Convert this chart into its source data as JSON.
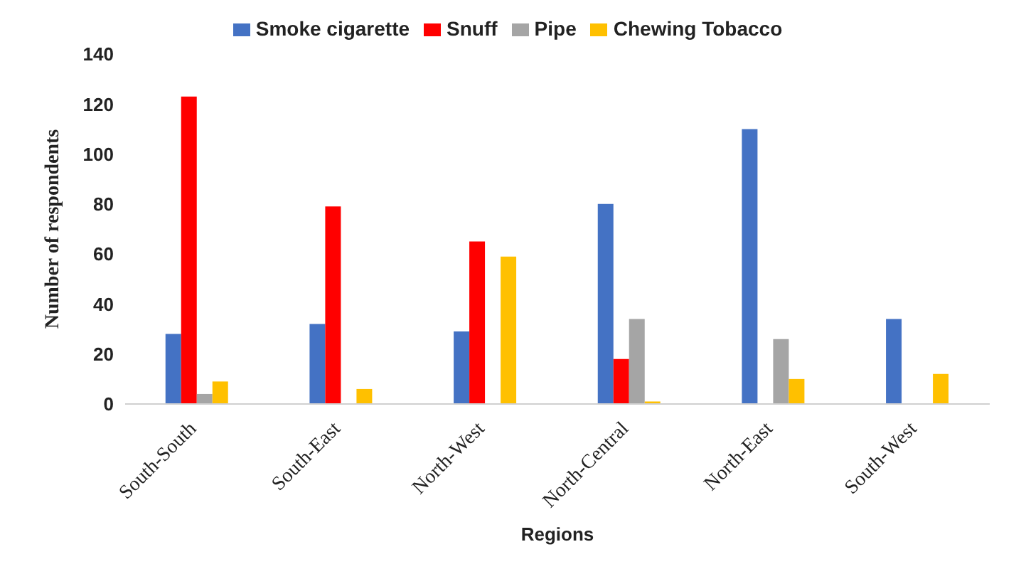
{
  "chart_data": {
    "type": "bar",
    "xlabel": "Regions",
    "ylabel": "Number of respondents",
    "categories": [
      "South-South",
      "South-East",
      "North-West",
      "North-Central",
      "North-East",
      "South-West"
    ],
    "series": [
      {
        "name": "Smoke cigarette",
        "color": "#4472c4",
        "values": [
          28,
          32,
          29,
          80,
          110,
          34
        ]
      },
      {
        "name": "Snuff",
        "color": "#ff0000",
        "values": [
          123,
          79,
          65,
          18,
          0,
          0
        ]
      },
      {
        "name": "Pipe",
        "color": "#a5a5a5",
        "values": [
          4,
          0,
          0,
          34,
          26,
          0
        ]
      },
      {
        "name": "Chewing Tobacco",
        "color": "#ffc000",
        "values": [
          9,
          6,
          59,
          1,
          10,
          12
        ]
      }
    ],
    "ylim": [
      0,
      140
    ],
    "yticks": [
      0,
      20,
      40,
      60,
      80,
      100,
      120,
      140
    ],
    "grid": false,
    "legend": "top"
  }
}
